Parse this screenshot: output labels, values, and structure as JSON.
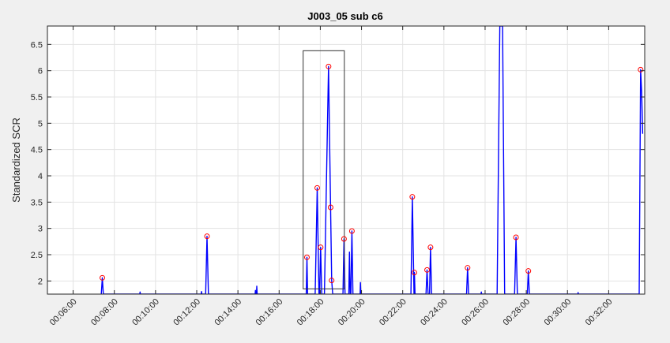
{
  "chart_data": {
    "type": "line",
    "title": "J003_05 sub c6",
    "xlabel": "",
    "ylabel": "Standardized SCR",
    "xlim": [
      "00:04:45",
      "00:33:45"
    ],
    "ylim": [
      1.75,
      6.85
    ],
    "x_ticks": [
      "00:06:00",
      "00:08:00",
      "00:10:00",
      "00:12:00",
      "00:14:00",
      "00:16:00",
      "00:18:00",
      "00:20:00",
      "00:22:00",
      "00:24:00",
      "00:26:00",
      "00:28:00",
      "00:30:00",
      "00:32:00"
    ],
    "y_ticks": [
      "2",
      "2.5",
      "3",
      "3.5",
      "4",
      "4.5",
      "5",
      "5.5",
      "6",
      "6.5"
    ],
    "grid": true,
    "colors": {
      "line": "#0000ff",
      "peak_marker": "#ff0000",
      "highlight_box": "#333333",
      "plot_bg": "#ffffff",
      "figure_bg": "#f0f0f0"
    },
    "series": [
      {
        "values": [
          [
            "00:07:22",
            1.75
          ],
          [
            "00:07:25",
            2.06
          ],
          [
            "00:07:28",
            1.75
          ],
          [
            "00:09:14",
            1.75
          ],
          [
            "00:09:15",
            1.79
          ],
          [
            "00:09:16",
            1.75
          ],
          [
            "00:12:13",
            1.75
          ],
          [
            "00:12:14",
            1.8
          ],
          [
            "00:12:15",
            1.75
          ],
          [
            "00:12:26",
            1.75
          ],
          [
            "00:12:30",
            2.85
          ],
          [
            "00:12:34",
            1.75
          ],
          [
            "00:14:50",
            1.75
          ],
          [
            "00:14:51",
            1.82
          ],
          [
            "00:14:52",
            1.75
          ],
          [
            "00:14:54",
            1.75
          ],
          [
            "00:14:55",
            1.9
          ],
          [
            "00:14:56",
            1.75
          ],
          [
            "00:17:19",
            1.75
          ],
          [
            "00:17:21",
            2.45
          ],
          [
            "00:17:23",
            1.75
          ],
          [
            "00:17:45",
            1.75
          ],
          [
            "00:17:51",
            3.77
          ],
          [
            "00:17:56",
            1.75
          ],
          [
            "00:17:58",
            1.75
          ],
          [
            "00:18:01",
            2.64
          ],
          [
            "00:18:04",
            1.75
          ],
          [
            "00:18:12",
            1.75
          ],
          [
            "00:18:24",
            6.08
          ],
          [
            "00:18:30",
            3.4
          ],
          [
            "00:18:33",
            2.01
          ],
          [
            "00:18:36",
            1.75
          ],
          [
            "00:19:06",
            1.75
          ],
          [
            "00:19:09",
            2.8
          ],
          [
            "00:19:12",
            1.75
          ],
          [
            "00:19:23",
            1.75
          ],
          [
            "00:19:25",
            2.55
          ],
          [
            "00:19:27",
            1.75
          ],
          [
            "00:19:29",
            1.75
          ],
          [
            "00:19:32",
            2.95
          ],
          [
            "00:19:35",
            1.75
          ],
          [
            "00:19:56",
            1.75
          ],
          [
            "00:19:57",
            1.97
          ],
          [
            "00:19:58",
            1.75
          ],
          [
            "00:22:24",
            1.75
          ],
          [
            "00:22:28",
            3.6
          ],
          [
            "00:22:33",
            1.75
          ],
          [
            "00:22:34",
            2.16
          ],
          [
            "00:22:36",
            1.75
          ],
          [
            "00:23:08",
            1.75
          ],
          [
            "00:23:11",
            2.21
          ],
          [
            "00:23:14",
            1.75
          ],
          [
            "00:23:18",
            1.75
          ],
          [
            "00:23:21",
            2.64
          ],
          [
            "00:23:24",
            1.75
          ],
          [
            "00:25:06",
            1.75
          ],
          [
            "00:25:09",
            2.25
          ],
          [
            "00:25:12",
            1.75
          ],
          [
            "00:25:48",
            1.75
          ],
          [
            "00:25:49",
            1.79
          ],
          [
            "00:25:50",
            1.75
          ],
          [
            "00:26:35",
            1.75
          ],
          [
            "00:26:43",
            6.85
          ],
          [
            "00:26:51",
            6.85
          ],
          [
            "00:26:57",
            1.75
          ],
          [
            "00:27:26",
            1.75
          ],
          [
            "00:27:30",
            2.83
          ],
          [
            "00:27:34",
            1.75
          ],
          [
            "00:28:03",
            1.75
          ],
          [
            "00:28:06",
            2.19
          ],
          [
            "00:28:09",
            1.75
          ],
          [
            "00:30:30",
            1.75
          ],
          [
            "00:30:31",
            1.78
          ],
          [
            "00:30:32",
            1.75
          ],
          [
            "00:33:29",
            1.75
          ],
          [
            "00:33:33",
            6.02
          ],
          [
            "00:33:36",
            5.6
          ],
          [
            "00:33:39",
            4.8
          ]
        ]
      }
    ],
    "peaks": [
      [
        "00:07:25",
        2.06
      ],
      [
        "00:12:30",
        2.85
      ],
      [
        "00:17:21",
        2.45
      ],
      [
        "00:17:51",
        3.77
      ],
      [
        "00:18:01",
        2.64
      ],
      [
        "00:18:24",
        6.08
      ],
      [
        "00:18:30",
        3.4
      ],
      [
        "00:18:33",
        2.01
      ],
      [
        "00:19:09",
        2.8
      ],
      [
        "00:19:32",
        2.95
      ],
      [
        "00:22:28",
        3.6
      ],
      [
        "00:22:34",
        2.16
      ],
      [
        "00:23:11",
        2.21
      ],
      [
        "00:23:21",
        2.64
      ],
      [
        "00:25:09",
        2.25
      ],
      [
        "00:27:30",
        2.83
      ],
      [
        "00:28:06",
        2.19
      ],
      [
        "00:33:33",
        6.02
      ]
    ],
    "highlight_box": {
      "x": [
        "00:17:10",
        "00:19:10"
      ],
      "y": [
        1.85,
        6.38
      ]
    }
  }
}
